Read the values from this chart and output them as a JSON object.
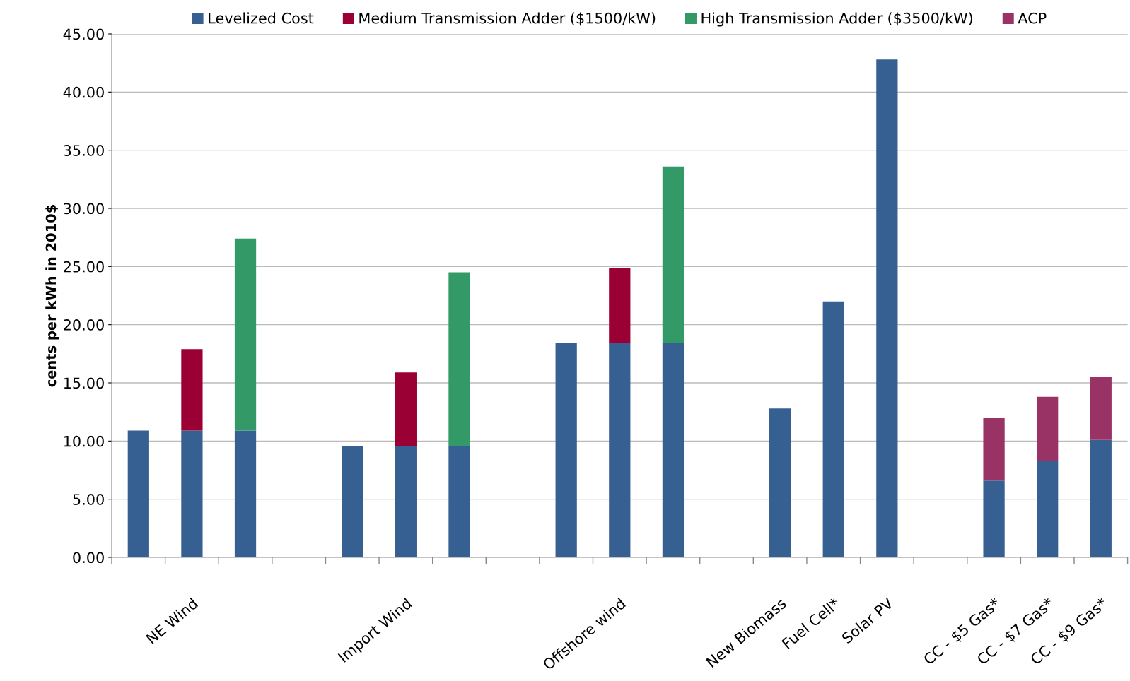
{
  "chart_data": {
    "type": "bar",
    "stacked": true,
    "ylabel": "cents per kWh in 2010$",
    "categories": [
      null,
      "NE Wind",
      null,
      null,
      null,
      "Import Wind",
      null,
      null,
      null,
      "Offshore wind",
      null,
      null,
      "New Biomass",
      "Fuel Cell*",
      "Solar PV",
      null,
      "CC - $5 Gas*",
      "CC - $7 Gas*",
      "CC - $9 Gas*"
    ],
    "series": [
      {
        "name": "Levelized Cost",
        "color": "#376092",
        "values": [
          10.9,
          10.9,
          10.9,
          null,
          9.6,
          9.6,
          9.6,
          null,
          18.4,
          18.4,
          18.4,
          null,
          12.8,
          22.0,
          42.8,
          null,
          6.6,
          8.3,
          10.1
        ]
      },
      {
        "name": "Medium Transmission Adder ($1500/kW)",
        "color": "#9b0034",
        "values": [
          null,
          7.0,
          null,
          null,
          null,
          6.3,
          null,
          null,
          null,
          6.5,
          null,
          null,
          null,
          null,
          null,
          null,
          null,
          null,
          null
        ]
      },
      {
        "name": "High Transmission Adder ($3500/kW)",
        "color": "#339966",
        "values": [
          null,
          null,
          16.5,
          null,
          null,
          null,
          14.9,
          null,
          null,
          null,
          15.2,
          null,
          null,
          null,
          null,
          null,
          null,
          null,
          null
        ]
      },
      {
        "name": "ACP",
        "color": "#993366",
        "values": [
          null,
          null,
          null,
          null,
          null,
          null,
          null,
          null,
          null,
          null,
          null,
          null,
          null,
          null,
          null,
          null,
          5.4,
          5.5,
          5.4
        ]
      }
    ],
    "ylim": [
      0,
      45
    ],
    "yticks": [
      {
        "value": 0,
        "label": "0.00"
      },
      {
        "value": 5,
        "label": "5.00"
      },
      {
        "value": 10,
        "label": "10.00"
      },
      {
        "value": 15,
        "label": "15.00"
      },
      {
        "value": 20,
        "label": "20.00"
      },
      {
        "value": 25,
        "label": "25.00"
      },
      {
        "value": 30,
        "label": "30.00"
      },
      {
        "value": 35,
        "label": "35.00"
      },
      {
        "value": 40,
        "label": "40.00"
      },
      {
        "value": 45,
        "label": "45.00"
      }
    ],
    "grid": "y",
    "legend": "top"
  }
}
